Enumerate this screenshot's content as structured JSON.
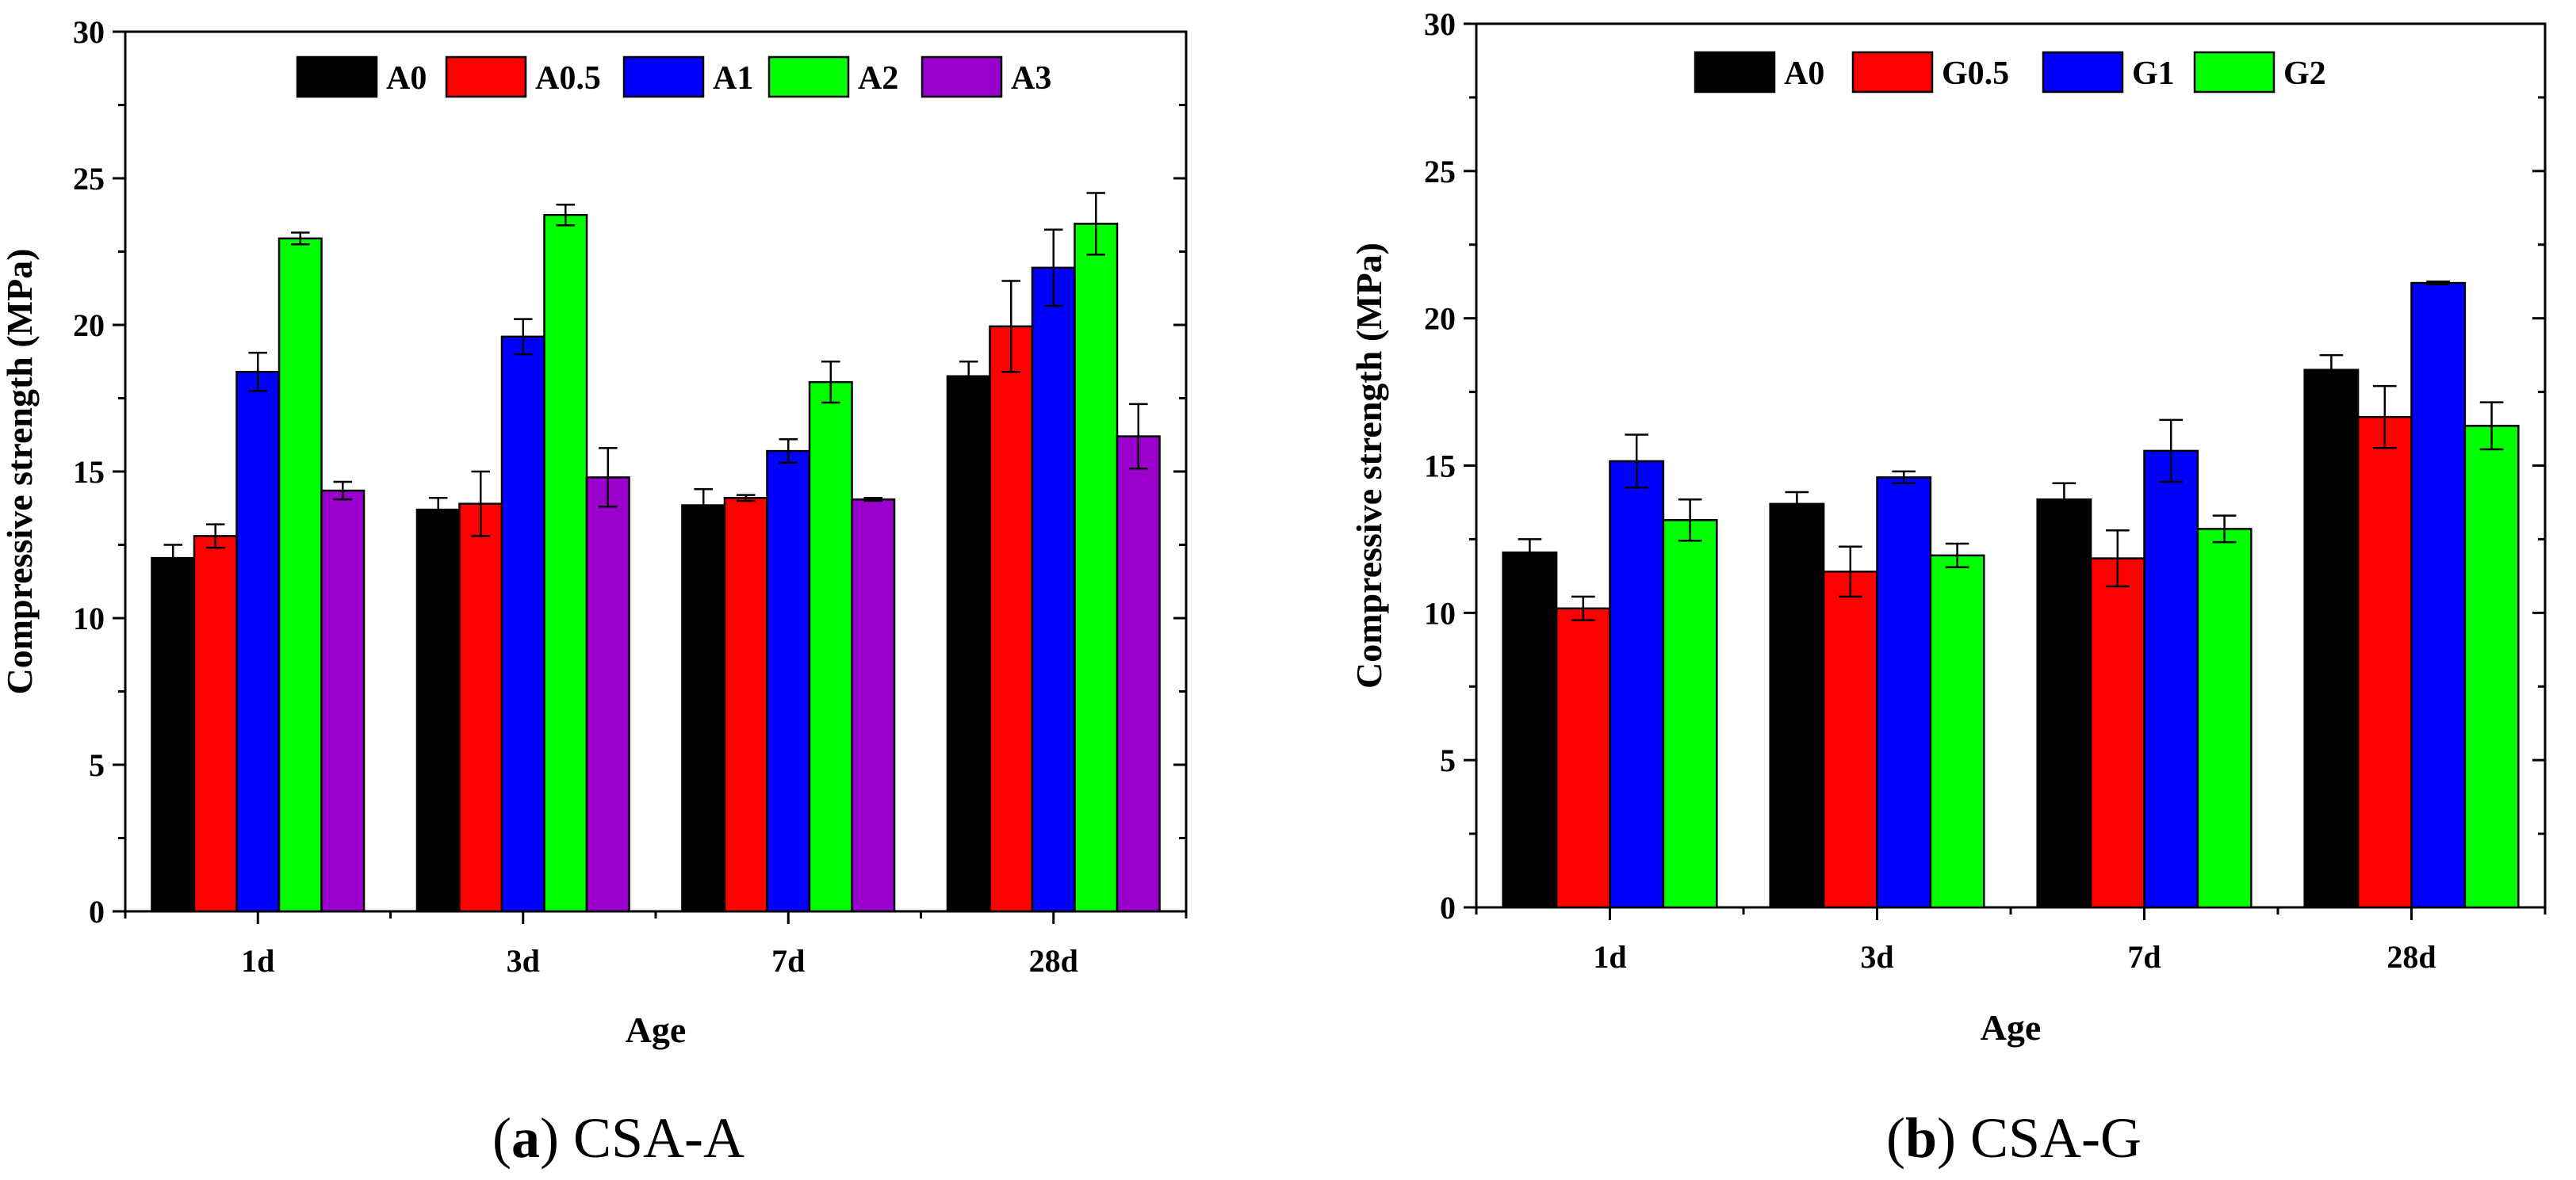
{
  "chart_data": [
    {
      "type": "bar",
      "caption_letter": "a",
      "caption_text": "CSA-A",
      "xlabel": "Age",
      "ylabel": "Compressive strength (MPa)",
      "ylim": [
        0,
        30
      ],
      "yticks": [
        0,
        5,
        10,
        15,
        20,
        25,
        30
      ],
      "categories": [
        "1d",
        "3d",
        "7d",
        "28d"
      ],
      "legend_position": "top-center",
      "series": [
        {
          "name": "A0",
          "color": "#000000",
          "values": [
            12.05,
            13.7,
            13.85,
            18.25
          ],
          "errors": [
            0.45,
            0.4,
            0.55,
            0.5
          ]
        },
        {
          "name": "A0.5",
          "color": "#ff0000",
          "values": [
            12.8,
            13.9,
            14.1,
            19.95
          ],
          "errors": [
            0.4,
            1.1,
            0.1,
            1.55
          ]
        },
        {
          "name": "A1",
          "color": "#0000ff",
          "values": [
            18.4,
            19.6,
            15.7,
            21.95
          ],
          "errors": [
            0.65,
            0.6,
            0.4,
            1.3
          ]
        },
        {
          "name": "A2",
          "color": "#00ff00",
          "values": [
            22.95,
            23.75,
            18.05,
            23.45
          ],
          "errors": [
            0.2,
            0.35,
            0.7,
            1.05
          ]
        },
        {
          "name": "A3",
          "color": "#9900cc",
          "values": [
            14.35,
            14.8,
            14.05,
            16.2
          ],
          "errors": [
            0.3,
            1.0,
            0.05,
            1.1
          ]
        }
      ]
    },
    {
      "type": "bar",
      "caption_letter": "b",
      "caption_text": "CSA-G",
      "xlabel": "Age",
      "ylabel": "Compressive strength (MPa)",
      "ylim": [
        0,
        30
      ],
      "yticks": [
        0,
        5,
        10,
        15,
        20,
        25,
        30
      ],
      "categories": [
        "1d",
        "3d",
        "7d",
        "28d"
      ],
      "legend_position": "top-center",
      "series": [
        {
          "name": "A0",
          "color": "#000000",
          "values": [
            12.05,
            13.7,
            13.85,
            18.25
          ],
          "errors": [
            0.45,
            0.4,
            0.55,
            0.5
          ]
        },
        {
          "name": "G0.5",
          "color": "#ff0000",
          "values": [
            10.15,
            11.4,
            11.85,
            16.65
          ],
          "errors": [
            0.4,
            0.85,
            0.95,
            1.05
          ]
        },
        {
          "name": "G1",
          "color": "#0000ff",
          "values": [
            15.15,
            14.6,
            15.5,
            21.2
          ],
          "errors": [
            0.9,
            0.2,
            1.05,
            0.05
          ]
        },
        {
          "name": "G2",
          "color": "#00ff00",
          "values": [
            13.15,
            11.95,
            12.85,
            16.35
          ],
          "errors": [
            0.7,
            0.4,
            0.45,
            0.8
          ]
        }
      ]
    }
  ]
}
